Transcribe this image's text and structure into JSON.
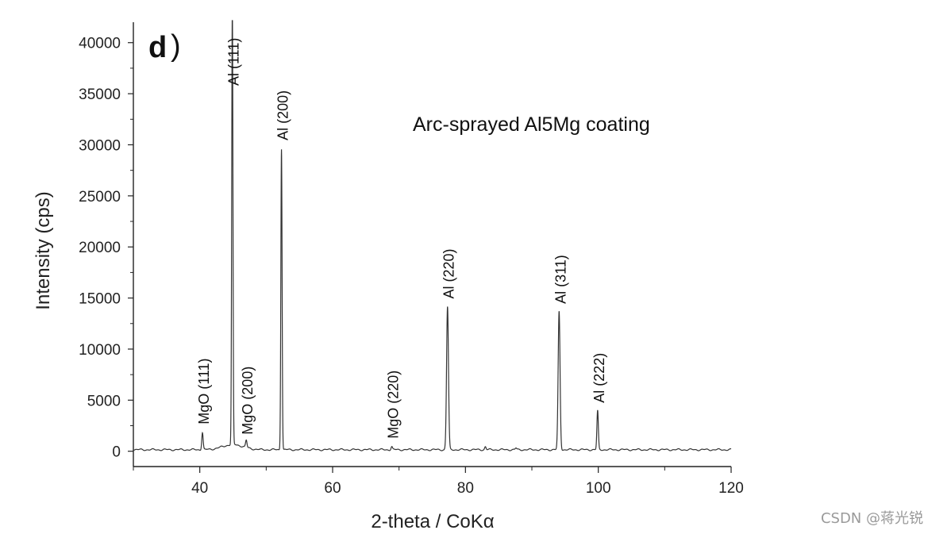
{
  "panel_label": "d",
  "watermark": "CSDN @蒋光锐",
  "chart_data": {
    "type": "line",
    "title": "",
    "annotation": "Arc-sprayed Al5Mg coating",
    "xlabel": "2-theta / CoKα",
    "ylabel": "Intensity (cps)",
    "xlim": [
      30,
      120
    ],
    "ylim": [
      -1500,
      42000
    ],
    "x_ticks": [
      40,
      60,
      80,
      100,
      120
    ],
    "x_tick_labels": [
      "40",
      "60",
      "80",
      "100",
      "120"
    ],
    "y_ticks": [
      0,
      5000,
      10000,
      15000,
      20000,
      25000,
      30000,
      35000,
      40000
    ],
    "y_tick_labels": [
      "0",
      "5000",
      "10000",
      "15000",
      "20000",
      "25000",
      "30000",
      "35000",
      "40000"
    ],
    "grid": false,
    "line_color": "#333333",
    "peaks": [
      {
        "label": "MgO (111)",
        "x": 40.4,
        "y": 1700
      },
      {
        "label": "Al (111)",
        "x": 44.9,
        "y": 43000
      },
      {
        "label": "MgO (200)",
        "x": 47.0,
        "y": 700
      },
      {
        "label": "Al (200)",
        "x": 52.3,
        "y": 29500
      },
      {
        "label": "MgO (220)",
        "x": 68.9,
        "y": 300
      },
      {
        "label": "Al (220)",
        "x": 77.3,
        "y": 14000
      },
      {
        "label": "Al (311)",
        "x": 94.1,
        "y": 13500
      },
      {
        "label": "Al (222)",
        "x": 99.9,
        "y": 3800
      }
    ],
    "minor_peaks": [
      {
        "x": 83.0,
        "y": 300
      },
      {
        "x": 87.6,
        "y": 150
      }
    ]
  }
}
